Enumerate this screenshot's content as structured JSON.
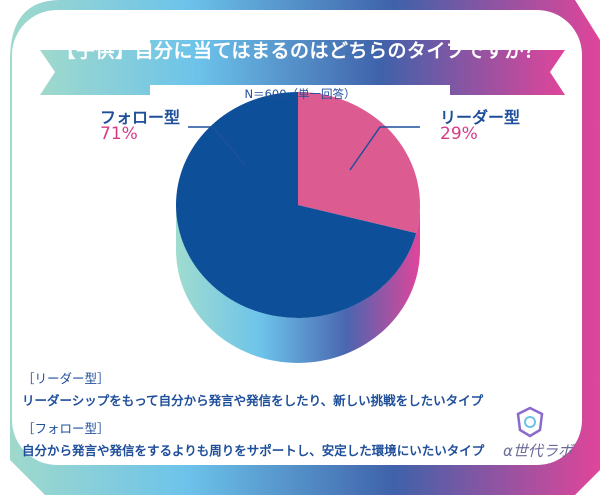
{
  "title": "【子供】自分に当てはまるのはどちらのタイプですか？",
  "subtitle": "N＝600（単一回答）",
  "chart_data": {
    "type": "pie",
    "title": "【子供】自分に当てはまるのはどちらのタイプですか？",
    "subtitle": "N＝600（単一回答）",
    "slices": [
      {
        "label": "リーダー型",
        "value": 29,
        "display": "29%",
        "color": "#dc5c92"
      },
      {
        "label": "フォロー型",
        "value": 71,
        "display": "71%",
        "color": "#0e4f9a"
      }
    ]
  },
  "descriptions": [
    {
      "heading": "［リーダー型］",
      "text": "リーダーシップをもって自分から発言や発信をしたり、新しい挑戦をしたいタイプ"
    },
    {
      "heading": "［フォロー型］",
      "text": "自分から発言や発信をするよりも周りをサポートし、安定した環境にいたいタイプ"
    }
  ],
  "logo": "α世代ラボ",
  "colors": {
    "teal": "#8fd3c8",
    "blue": "#3f62aa",
    "sky": "#6cc3ea",
    "pink": "#d8318a"
  }
}
